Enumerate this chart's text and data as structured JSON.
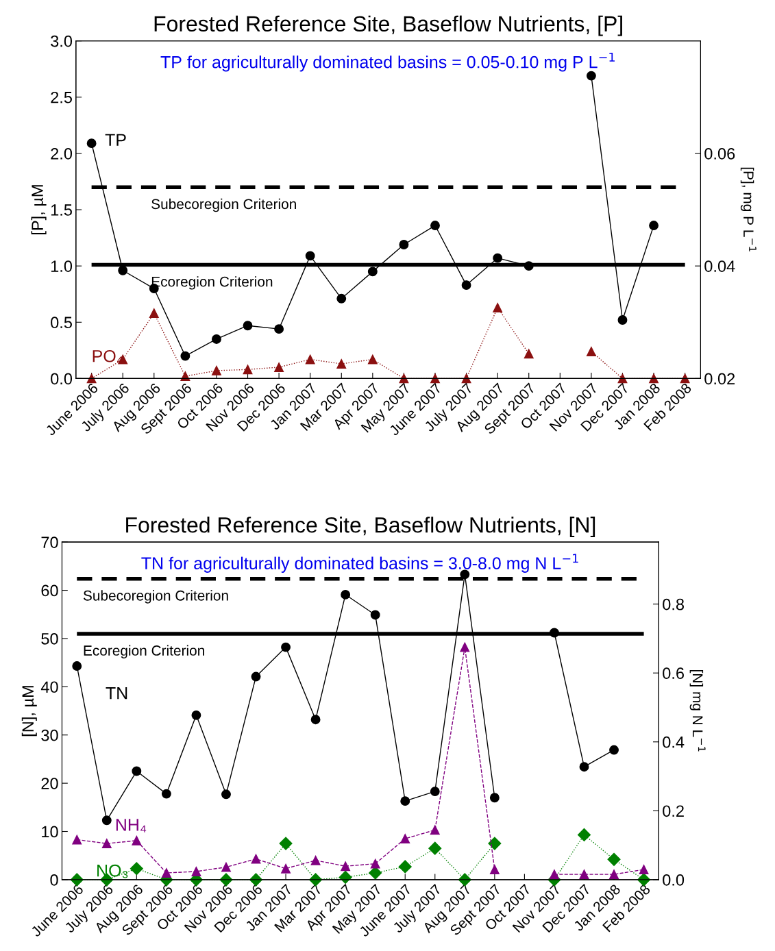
{
  "chart_data": [
    {
      "type": "line",
      "title": "Forested Reference Site, Baseflow Nutrients, [P]",
      "ylabel": "[P], µM",
      "y2label": "[P], mg P L$^{−1}$",
      "categories": [
        "June 2006",
        "July 2006",
        "Aug 2006",
        "Sept 2006",
        "Oct 2006",
        "Nov 2006",
        "Dec 2006",
        "Jan 2007",
        "Mar 2007",
        "Apr 2007",
        "May 2007",
        "June 2007",
        "July 2007",
        "Aug 2007",
        "Sept 2007",
        "Oct 2007",
        "Nov 2007",
        "Dec 2007",
        "Jan 2008",
        "Feb 2008"
      ],
      "series": [
        {
          "name": "TP",
          "color": "#000000",
          "marker": "circle",
          "line_style": "solid",
          "values": [
            2.09,
            0.96,
            0.8,
            0.2,
            0.35,
            0.47,
            0.44,
            1.09,
            0.71,
            0.95,
            1.19,
            1.36,
            0.83,
            1.07,
            1.0,
            null,
            2.69,
            0.52,
            1.36,
            null
          ]
        },
        {
          "name": "PO₄",
          "color": "#8b1010",
          "marker": "triangle",
          "line_style": "dotted",
          "values": [
            0.0,
            0.17,
            0.58,
            0.02,
            0.07,
            0.08,
            0.1,
            0.17,
            0.13,
            0.17,
            0.0,
            0.0,
            0.0,
            0.63,
            0.22,
            null,
            0.24,
            0.0,
            0.0,
            0.0
          ]
        }
      ],
      "ylim": [
        0,
        3.0
      ],
      "yticks": [
        {
          "value": 0,
          "label": "0.0"
        },
        0.5,
        {
          "value": 1,
          "label": "1.0"
        },
        1.5,
        {
          "value": 2,
          "label": "2.0"
        },
        2.5,
        {
          "value": 3,
          "label": "3.0"
        }
      ],
      "y2lim": [
        0.02,
        0.08
      ],
      "y2ticks": [
        0.02,
        0.04,
        0.06
      ],
      "ref_lines": [
        {
          "axis": "y",
          "value": 1.7,
          "label": "Subecoregion Criterion",
          "color": "#000000",
          "line_style": "dashed"
        },
        {
          "axis": "y",
          "value": 1.01,
          "label": "Ecoregion Criterion",
          "color": "#000000",
          "line_style": "solid"
        }
      ],
      "annotations": [
        "TP for agriculturally dominated basins = 0.05-0.10 mg P L$^{−1}$"
      ],
      "grid": false,
      "legend": false
    },
    {
      "type": "line",
      "title": "Forested Reference Site, Baseflow Nutrients, [N]",
      "ylabel": "[N], µM",
      "y2label": "[N] mg N L$^{−1}$",
      "categories": [
        "June 2006",
        "July 2006",
        "Aug 2006",
        "Sept 2006",
        "Oct 2006",
        "Nov 2006",
        "Dec 2006",
        "Jan 2007",
        "Mar 2007",
        "Apr 2007",
        "May 2007",
        "June 2007",
        "July 2007",
        "Aug 2007",
        "Sept 2007",
        "Oct 2007",
        "Nov 2007",
        "Dec 2007",
        "Jan 2008",
        "Feb 2008"
      ],
      "series": [
        {
          "name": "TN",
          "color": "#000000",
          "marker": "circle",
          "line_style": "solid",
          "values": [
            44.3,
            12.3,
            22.5,
            17.8,
            34.1,
            17.7,
            42.1,
            48.2,
            33.2,
            59.1,
            54.9,
            16.3,
            18.3,
            63.3,
            17.0,
            null,
            51.2,
            23.4,
            26.9,
            null
          ]
        },
        {
          "name": "NH₄",
          "color": "#800080",
          "marker": "triangle",
          "line_style": "dashed",
          "values": [
            8.3,
            7.5,
            8.1,
            1.4,
            1.7,
            2.6,
            4.3,
            2.3,
            4.0,
            2.8,
            3.3,
            8.5,
            10.3,
            48.2,
            2.1,
            null,
            1.1,
            1.1,
            1.1,
            2.1
          ]
        },
        {
          "name": "NO₃",
          "color": "#008000",
          "marker": "diamond",
          "line_style": "dotted",
          "values": [
            0.0,
            0.0,
            2.3,
            0.0,
            0.0,
            0.0,
            0.0,
            7.5,
            0.0,
            0.5,
            1.4,
            2.7,
            6.5,
            0.0,
            7.5,
            null,
            0.0,
            9.3,
            4.2,
            0.0
          ]
        }
      ],
      "ylim": [
        0,
        70
      ],
      "yticks": [
        0,
        10,
        20,
        30,
        40,
        50,
        60,
        70
      ],
      "y2lim": [
        0,
        0.98
      ],
      "y2ticks": [
        {
          "value": 0,
          "label": "0.0"
        },
        0.2,
        0.4,
        0.6,
        0.8
      ],
      "ref_lines": [
        {
          "axis": "y",
          "value": 62.4,
          "label": "Subecoregion Criterion",
          "color": "#000000",
          "line_style": "dashed"
        },
        {
          "axis": "y",
          "value": 51.0,
          "label": "Ecoregion Criterion",
          "color": "#000000",
          "line_style": "solid"
        }
      ],
      "annotations": [
        "TN for agriculturally dominated basins = 3.0-8.0 mg N L$^{−1}$"
      ],
      "grid": false,
      "legend": false
    }
  ]
}
